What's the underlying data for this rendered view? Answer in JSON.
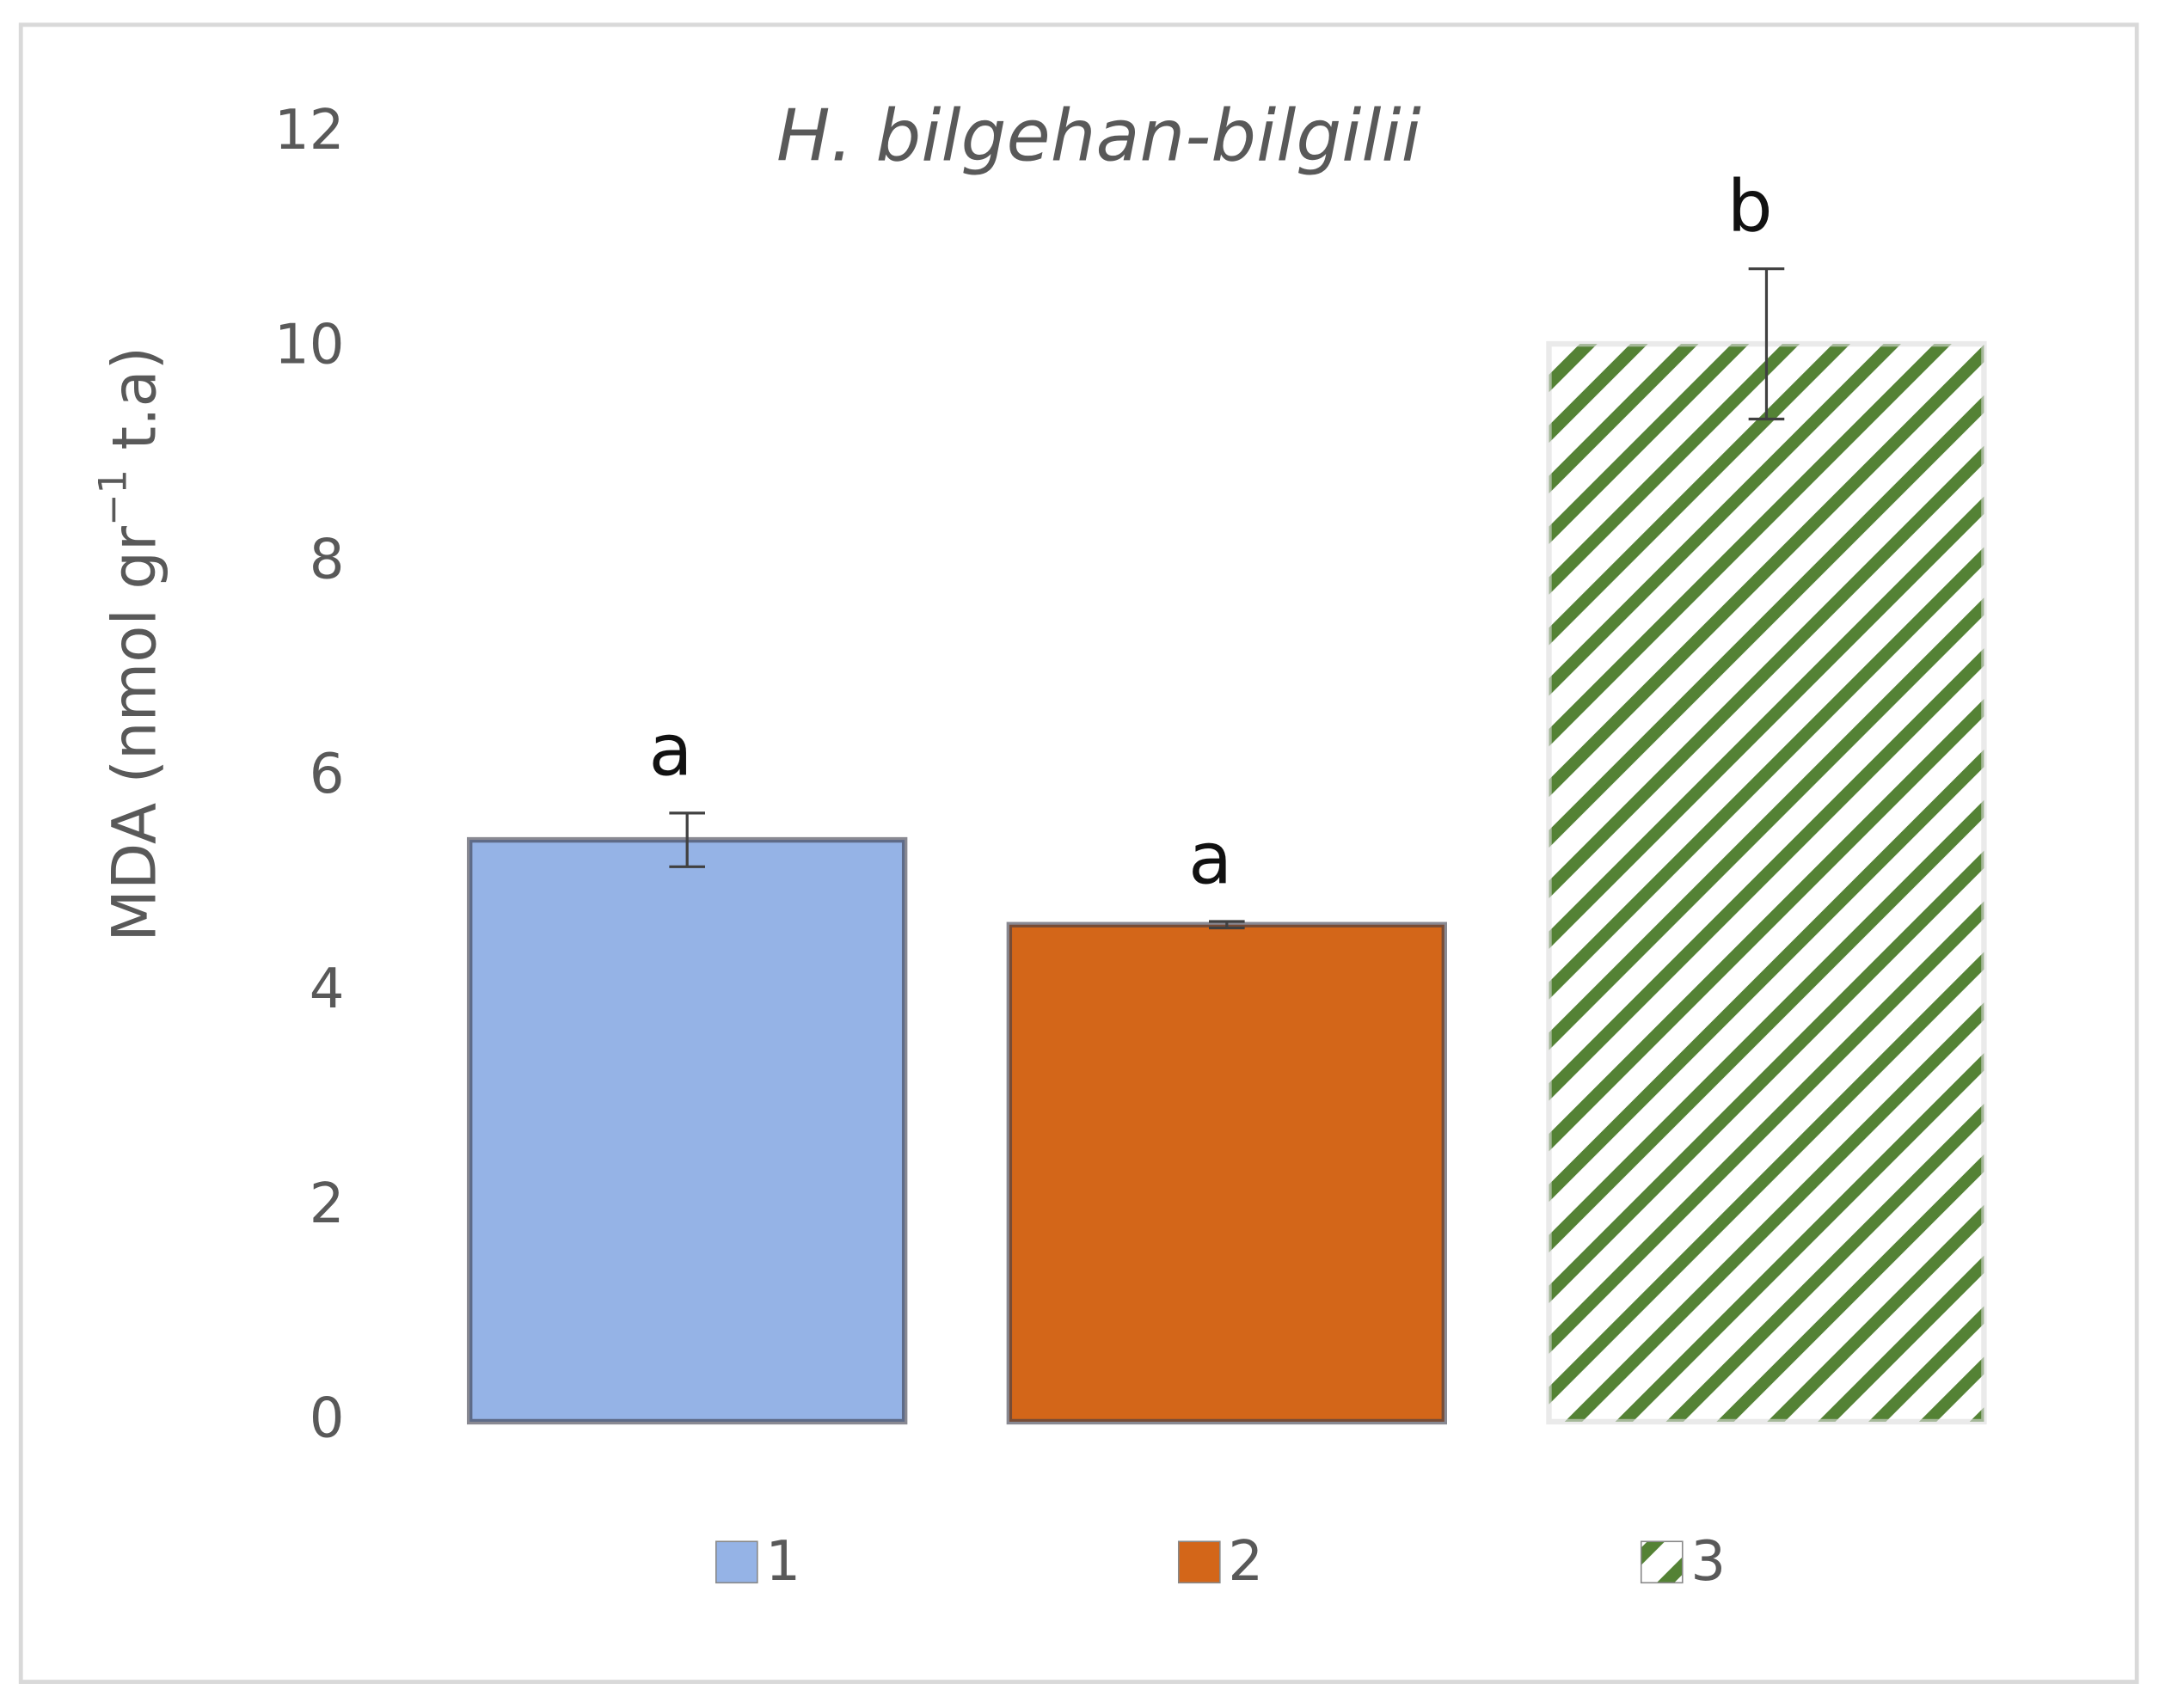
{
  "chart_data": {
    "type": "bar",
    "title": "H. bilgehan-bilgilii",
    "ylabel": [
      "MDA (nmol gr",
      "−1",
      " t.a)"
    ],
    "categories": [
      null
    ],
    "series": [
      {
        "name": "1",
        "color": "#95b3e6",
        "pattern": "solid",
        "values": [
          5.42
        ],
        "errors": [
          0.25
        ],
        "label": "a"
      },
      {
        "name": "2",
        "color": "#d36619",
        "pattern": "solid",
        "values": [
          4.63
        ],
        "errors": [
          0.03
        ],
        "label": "a"
      },
      {
        "name": "3",
        "color": "#548235",
        "pattern": "hatch",
        "values": [
          10.04
        ],
        "errors": [
          0.7
        ],
        "label": "b"
      }
    ],
    "ylim": [
      0,
      12
    ],
    "yticks": [
      0,
      2,
      4,
      6,
      8,
      10,
      12
    ],
    "grid": false,
    "legend": "bottom"
  }
}
